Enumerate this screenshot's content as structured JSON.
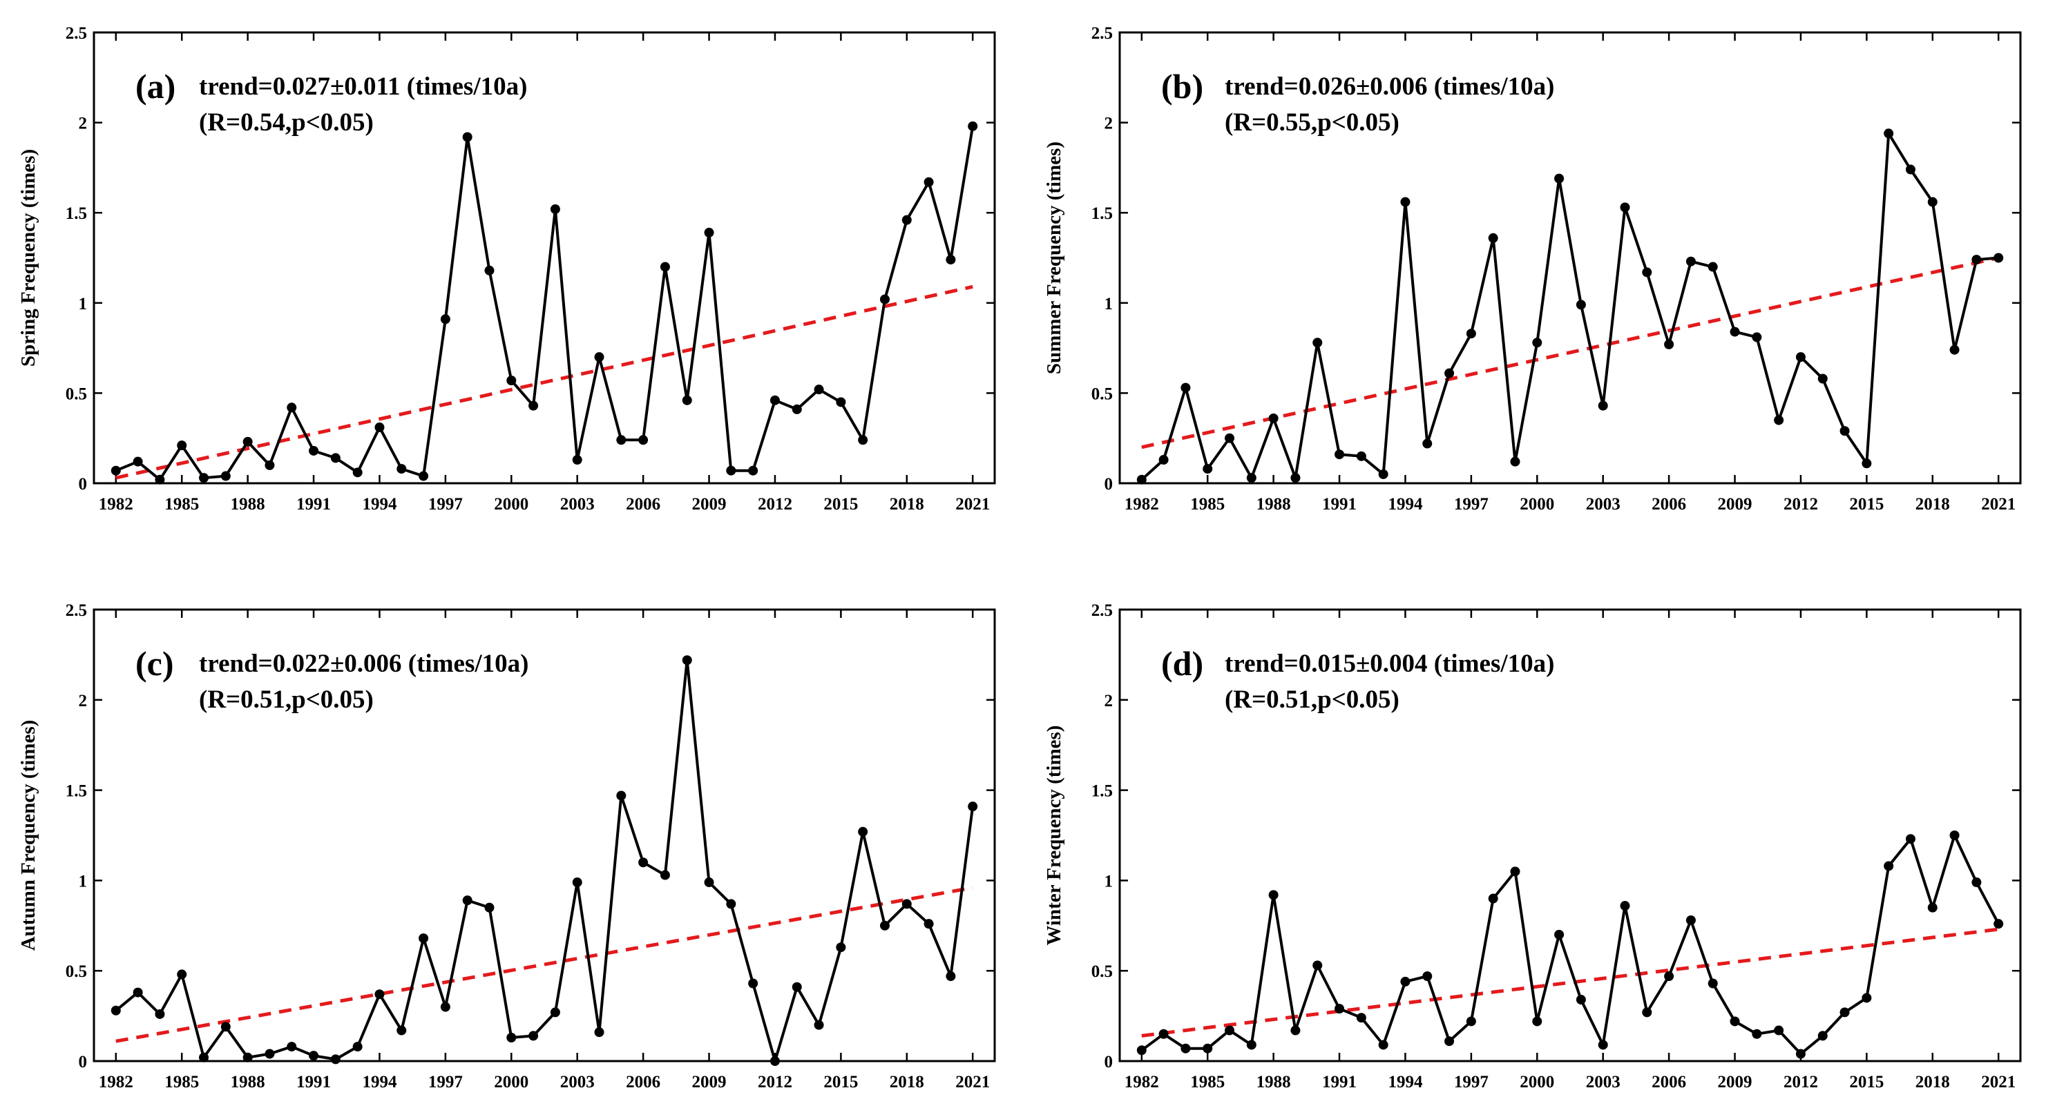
{
  "colors": {
    "data_line": "#000000",
    "trend_line": "#e41a1c",
    "axes": "#000000"
  },
  "chart_data": [
    {
      "type": "line",
      "panel": "(a)",
      "annotation_line1": "trend=0.027±0.011 (times/10a)",
      "annotation_line2": "(R=0.54,p<0.05)",
      "xlabel": "",
      "ylabel": "Spring Frequency (times)",
      "xlim": [
        1981,
        2022
      ],
      "ylim": [
        0,
        2.5
      ],
      "xticks": [
        1982,
        1985,
        1988,
        1991,
        1994,
        1997,
        2000,
        2003,
        2006,
        2009,
        2012,
        2015,
        2018,
        2021
      ],
      "yticks": [
        0,
        0.5,
        1,
        1.5,
        2,
        2.5
      ],
      "ytick_labels": [
        "0",
        "0.5",
        "1",
        "1.5",
        "2",
        "2.5"
      ],
      "grid": false,
      "x": [
        1982,
        1983,
        1984,
        1985,
        1986,
        1987,
        1988,
        1989,
        1990,
        1991,
        1992,
        1993,
        1994,
        1995,
        1996,
        1997,
        1998,
        1999,
        2000,
        2001,
        2002,
        2003,
        2004,
        2005,
        2006,
        2007,
        2008,
        2009,
        2010,
        2011,
        2012,
        2013,
        2014,
        2015,
        2016,
        2017,
        2018,
        2019,
        2020,
        2021
      ],
      "values": [
        0.07,
        0.12,
        0.02,
        0.21,
        0.03,
        0.04,
        0.23,
        0.1,
        0.42,
        0.18,
        0.14,
        0.06,
        0.31,
        0.08,
        0.04,
        0.91,
        1.92,
        1.18,
        0.57,
        0.43,
        1.52,
        0.13,
        0.7,
        0.24,
        0.24,
        1.2,
        0.46,
        1.39,
        0.07,
        0.07,
        0.46,
        0.41,
        0.52,
        0.45,
        0.24,
        1.02,
        1.46,
        1.67,
        1.24,
        1.98
      ],
      "trend": {
        "x": [
          1982,
          2021
        ],
        "y": [
          0.03,
          1.09
        ]
      }
    },
    {
      "type": "line",
      "panel": "(b)",
      "annotation_line1": "trend=0.026±0.006 (times/10a)",
      "annotation_line2": "(R=0.55,p<0.05)",
      "xlabel": "",
      "ylabel": "Summer Frequency (times)",
      "xlim": [
        1981,
        2022
      ],
      "ylim": [
        0,
        2.5
      ],
      "xticks": [
        1982,
        1985,
        1988,
        1991,
        1994,
        1997,
        2000,
        2003,
        2006,
        2009,
        2012,
        2015,
        2018,
        2021
      ],
      "yticks": [
        0,
        0.5,
        1,
        1.5,
        2,
        2.5
      ],
      "ytick_labels": [
        "0",
        "0.5",
        "1",
        "1.5",
        "2",
        "2.5"
      ],
      "grid": false,
      "x": [
        1982,
        1983,
        1984,
        1985,
        1986,
        1987,
        1988,
        1989,
        1990,
        1991,
        1992,
        1993,
        1994,
        1995,
        1996,
        1997,
        1998,
        1999,
        2000,
        2001,
        2002,
        2003,
        2004,
        2005,
        2006,
        2007,
        2008,
        2009,
        2010,
        2011,
        2012,
        2013,
        2014,
        2015,
        2016,
        2017,
        2018,
        2019,
        2020,
        2021
      ],
      "values": [
        0.02,
        0.13,
        0.53,
        0.08,
        0.25,
        0.03,
        0.36,
        0.03,
        0.78,
        0.16,
        0.15,
        0.05,
        1.56,
        0.22,
        0.61,
        0.83,
        1.36,
        0.12,
        0.78,
        1.69,
        0.99,
        0.43,
        1.53,
        1.17,
        0.77,
        1.23,
        1.2,
        0.84,
        0.81,
        0.35,
        0.7,
        0.58,
        0.29,
        0.11,
        1.94,
        1.74,
        1.56,
        0.74,
        1.24,
        1.25
      ],
      "trend": {
        "x": [
          1982,
          2021
        ],
        "y": [
          0.2,
          1.25
        ]
      }
    },
    {
      "type": "line",
      "panel": "(c)",
      "annotation_line1": "trend=0.022±0.006 (times/10a)",
      "annotation_line2": "(R=0.51,p<0.05)",
      "xlabel": "",
      "ylabel": "Autumn Frequency (times)",
      "xlim": [
        1981,
        2022
      ],
      "ylim": [
        0,
        2.5
      ],
      "xticks": [
        1982,
        1985,
        1988,
        1991,
        1994,
        1997,
        2000,
        2003,
        2006,
        2009,
        2012,
        2015,
        2018,
        2021
      ],
      "yticks": [
        0,
        0.5,
        1,
        1.5,
        2,
        2.5
      ],
      "ytick_labels": [
        "0",
        "0.5",
        "1",
        "1.5",
        "2",
        "2.5"
      ],
      "grid": false,
      "x": [
        1982,
        1983,
        1984,
        1985,
        1986,
        1987,
        1988,
        1989,
        1990,
        1991,
        1992,
        1993,
        1994,
        1995,
        1996,
        1997,
        1998,
        1999,
        2000,
        2001,
        2002,
        2003,
        2004,
        2005,
        2006,
        2007,
        2008,
        2009,
        2010,
        2011,
        2012,
        2013,
        2014,
        2015,
        2016,
        2017,
        2018,
        2019,
        2020,
        2021
      ],
      "values": [
        0.28,
        0.38,
        0.26,
        0.48,
        0.02,
        0.19,
        0.02,
        0.04,
        0.08,
        0.03,
        0.01,
        0.08,
        0.37,
        0.17,
        0.68,
        0.3,
        0.89,
        0.85,
        0.13,
        0.14,
        0.27,
        0.99,
        0.16,
        1.47,
        1.1,
        1.03,
        2.22,
        0.99,
        0.87,
        0.43,
        0.0,
        0.41,
        0.2,
        0.63,
        1.27,
        0.75,
        0.87,
        0.76,
        0.47,
        1.41
      ],
      "trend": {
        "x": [
          1982,
          2021
        ],
        "y": [
          0.11,
          0.96
        ]
      }
    },
    {
      "type": "line",
      "panel": "(d)",
      "annotation_line1": "trend=0.015±0.004 (times/10a)",
      "annotation_line2": "(R=0.51,p<0.05)",
      "xlabel": "",
      "ylabel": "Winter Frequency (times)",
      "xlim": [
        1981,
        2022
      ],
      "ylim": [
        0,
        2.5
      ],
      "xticks": [
        1982,
        1985,
        1988,
        1991,
        1994,
        1997,
        2000,
        2003,
        2006,
        2009,
        2012,
        2015,
        2018,
        2021
      ],
      "yticks": [
        0,
        0.5,
        1,
        1.5,
        2,
        2.5
      ],
      "ytick_labels": [
        "0",
        "0.5",
        "1",
        "1.5",
        "2",
        "2.5"
      ],
      "grid": false,
      "x": [
        1982,
        1983,
        1984,
        1985,
        1986,
        1987,
        1988,
        1989,
        1990,
        1991,
        1992,
        1993,
        1994,
        1995,
        1996,
        1997,
        1998,
        1999,
        2000,
        2001,
        2002,
        2003,
        2004,
        2005,
        2006,
        2007,
        2008,
        2009,
        2010,
        2011,
        2012,
        2013,
        2014,
        2015,
        2016,
        2017,
        2018,
        2019,
        2020,
        2021
      ],
      "values": [
        0.06,
        0.15,
        0.07,
        0.07,
        0.17,
        0.09,
        0.92,
        0.17,
        0.53,
        0.29,
        0.24,
        0.09,
        0.44,
        0.47,
        0.11,
        0.22,
        0.9,
        1.05,
        0.22,
        0.7,
        0.34,
        0.09,
        0.86,
        0.27,
        0.47,
        0.78,
        0.43,
        0.22,
        0.15,
        0.17,
        0.04,
        0.14,
        0.27,
        0.35,
        1.08,
        1.23,
        0.85,
        1.25,
        0.99,
        0.76
      ],
      "trend": {
        "x": [
          1982,
          2021
        ],
        "y": [
          0.14,
          0.73
        ]
      }
    }
  ]
}
